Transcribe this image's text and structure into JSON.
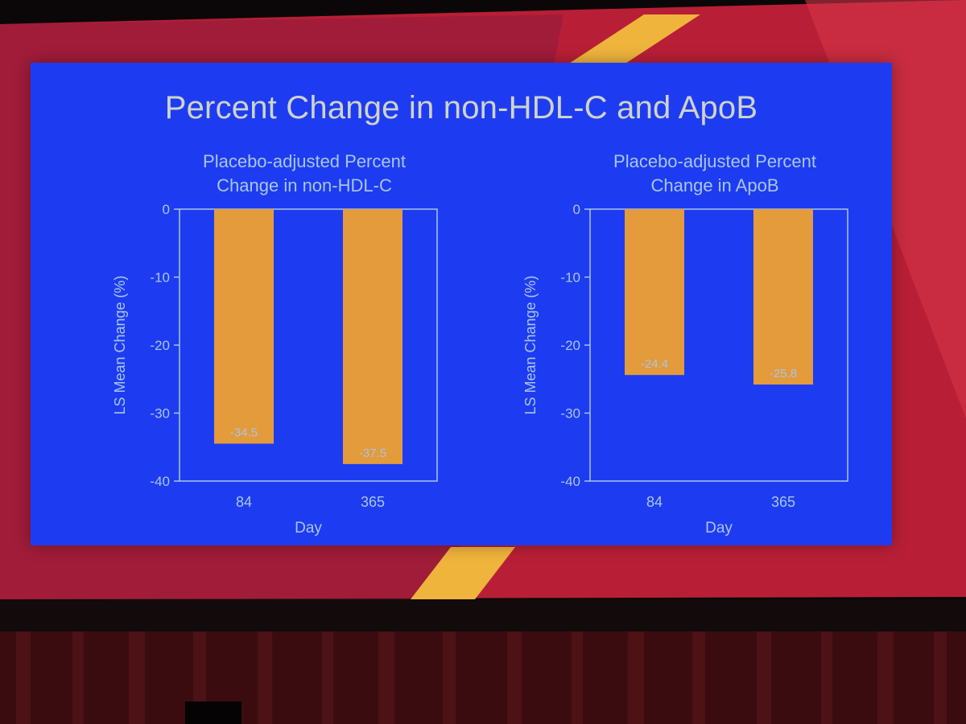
{
  "slide": {
    "title": "Percent Change in non-HDL-C and ApoB"
  },
  "colors": {
    "slide_background": "#1d3cf2",
    "bar": "#e39b3b",
    "text": "#a9c5e6",
    "stage_red": "#c1263a",
    "stage_gold": "#efb43c"
  },
  "chart_data": [
    {
      "type": "bar",
      "title_lines": [
        "Placebo-adjusted Percent",
        "Change in non-HDL-C"
      ],
      "xlabel": "Day",
      "ylabel": "LS Mean Change (%)",
      "categories": [
        "84",
        "365"
      ],
      "values": [
        -34.5,
        -37.5
      ],
      "data_labels": [
        "-34.5",
        "-37.5"
      ],
      "ylim": [
        -40,
        0
      ],
      "yticks": [
        0,
        -10,
        -20,
        -30,
        -40
      ],
      "grid": false
    },
    {
      "type": "bar",
      "title_lines": [
        "Placebo-adjusted Percent",
        "Change in ApoB"
      ],
      "xlabel": "Day",
      "ylabel": "LS Mean Change (%)",
      "categories": [
        "84",
        "365"
      ],
      "values": [
        -24.4,
        -25.8
      ],
      "data_labels": [
        "-24.4",
        "-25.8"
      ],
      "ylim": [
        -40,
        0
      ],
      "yticks": [
        0,
        -10,
        -20,
        -30,
        -40
      ],
      "grid": false
    }
  ]
}
